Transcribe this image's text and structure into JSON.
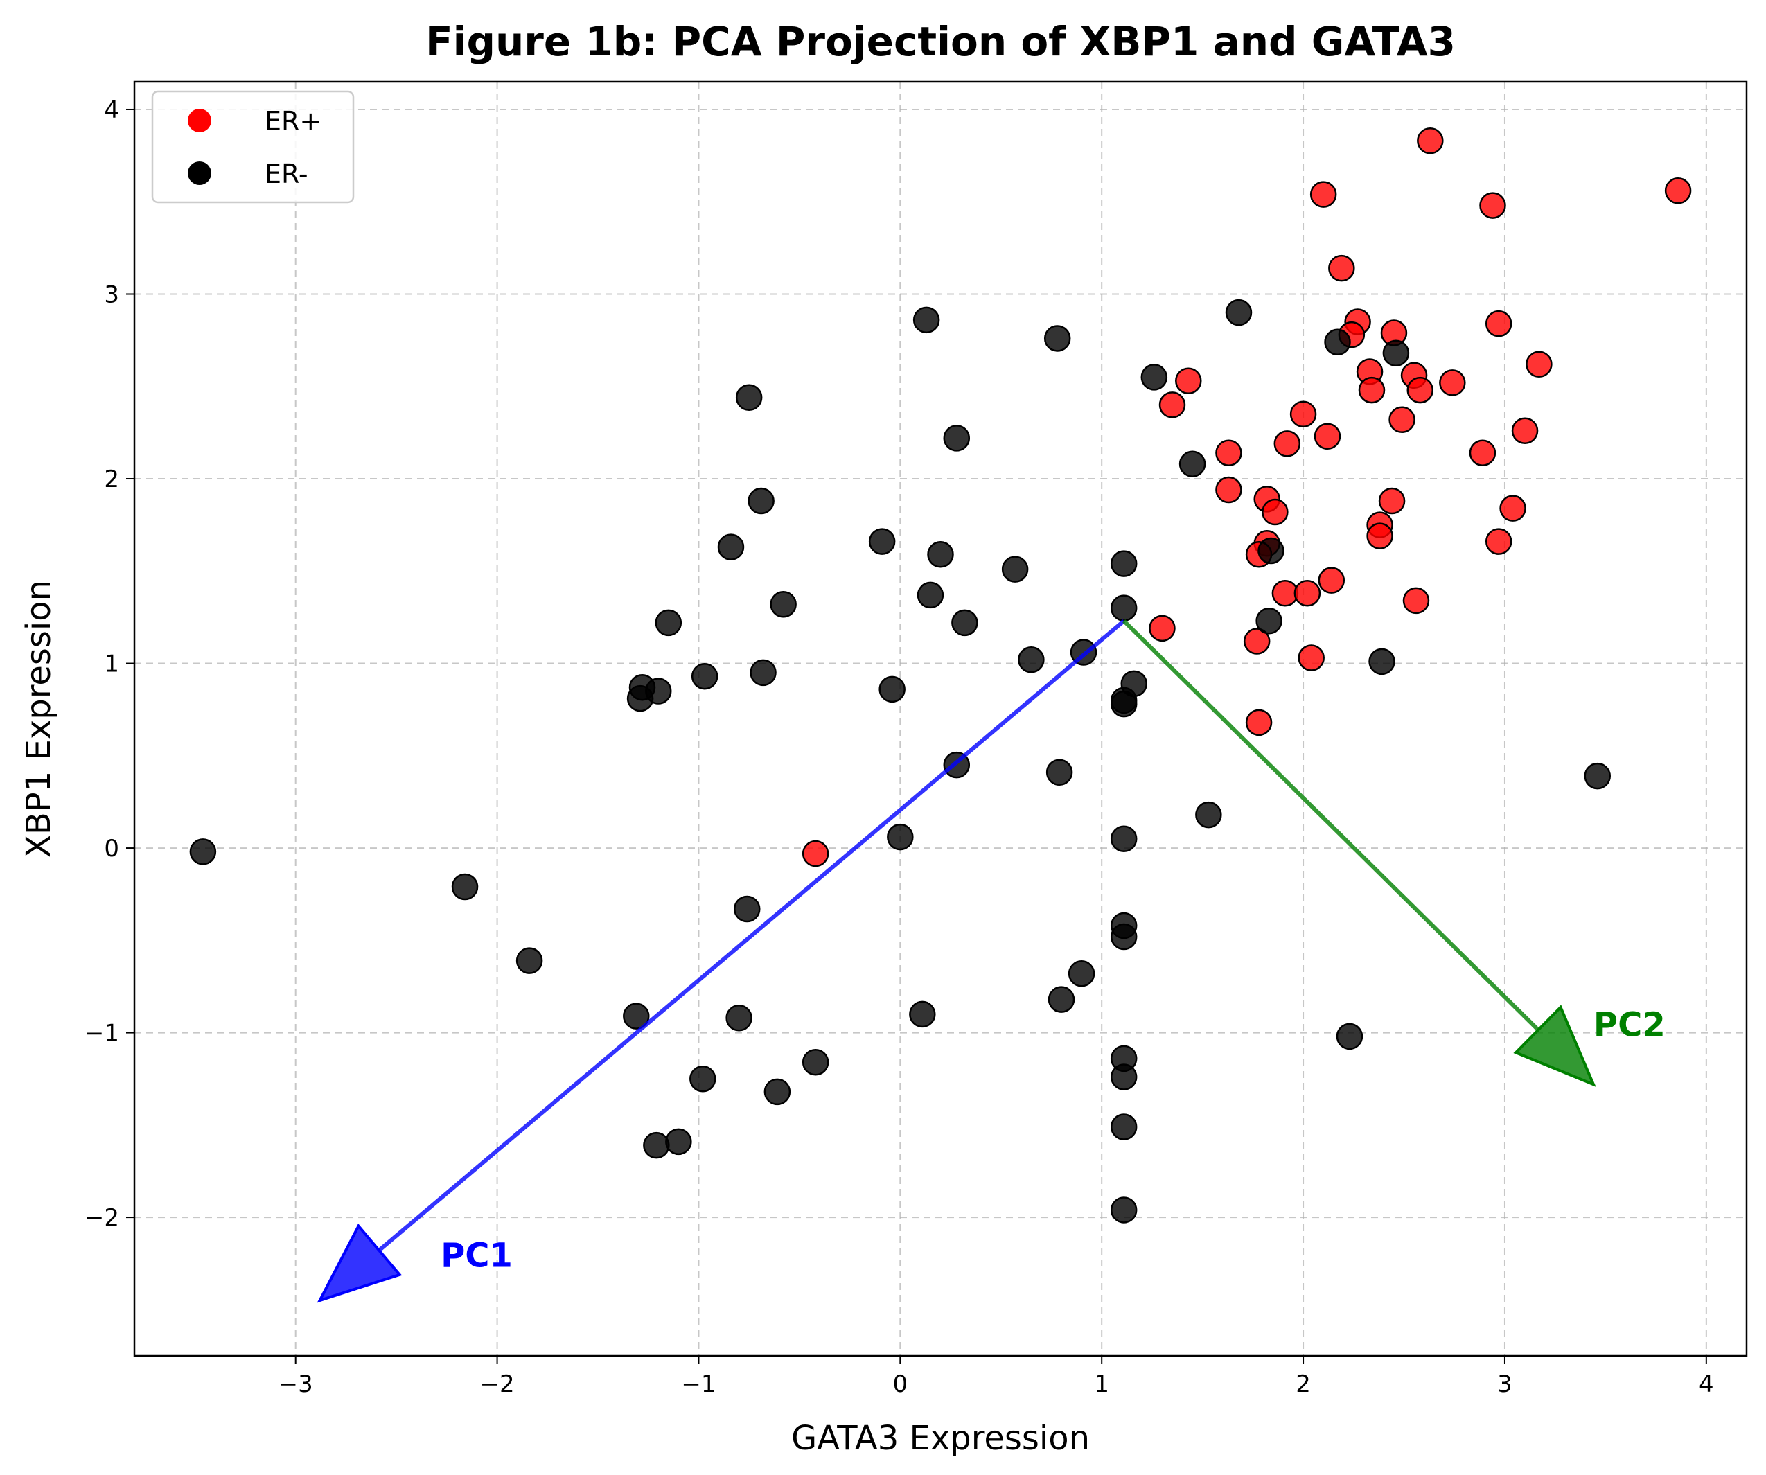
{
  "chart_data": {
    "type": "scatter",
    "title": "Figure 1b: PCA Projection of XBP1 and GATA3",
    "xlabel": "GATA3 Expression",
    "ylabel": "XBP1 Expression",
    "xlim": [
      -3.8,
      4.2
    ],
    "ylim": [
      -2.75,
      4.15
    ],
    "xticks": [
      -3,
      -2,
      -1,
      0,
      1,
      2,
      3,
      4
    ],
    "yticks": [
      -2,
      -1,
      0,
      1,
      2,
      3,
      4
    ],
    "grid": true,
    "legend_placement": "top-left",
    "series": [
      {
        "name": "ER+",
        "color": "#ff0000",
        "x": [
          2.63,
          3.86,
          2.1,
          2.94,
          2.19,
          2.27,
          2.24,
          2.45,
          2.97,
          3.17,
          1.43,
          2.33,
          2.55,
          2.34,
          2.74,
          2.58,
          1.35,
          2.0,
          2.49,
          1.63,
          1.92,
          2.12,
          3.1,
          2.89,
          1.63,
          1.82,
          1.86,
          2.44,
          3.04,
          2.38,
          2.38,
          2.97,
          1.82,
          1.78,
          2.14,
          1.91,
          2.02,
          2.56,
          1.3,
          1.77,
          2.04,
          1.78,
          -0.42
        ],
        "y": [
          3.83,
          3.56,
          3.54,
          3.48,
          3.14,
          2.85,
          2.78,
          2.79,
          2.84,
          2.62,
          2.53,
          2.58,
          2.56,
          2.48,
          2.52,
          2.48,
          2.4,
          2.35,
          2.32,
          2.14,
          2.19,
          2.23,
          2.26,
          2.14,
          1.94,
          1.89,
          1.82,
          1.88,
          1.84,
          1.75,
          1.69,
          1.66,
          1.65,
          1.59,
          1.45,
          1.38,
          1.38,
          1.34,
          1.19,
          1.12,
          1.03,
          0.68,
          -0.03
        ]
      },
      {
        "name": "ER-",
        "color": "#000000",
        "x": [
          -3.46,
          -2.16,
          -1.84,
          -1.31,
          -1.29,
          -1.28,
          -1.2,
          -1.21,
          -1.15,
          -1.1,
          -0.98,
          -0.97,
          -0.84,
          -0.8,
          -0.76,
          -0.75,
          -0.69,
          -0.68,
          -0.61,
          -0.58,
          -0.42,
          -0.09,
          -0.04,
          0.0,
          0.11,
          0.13,
          0.15,
          0.2,
          0.28,
          0.28,
          0.32,
          0.57,
          0.65,
          0.78,
          0.79,
          0.8,
          0.9,
          0.91,
          1.11,
          1.11,
          1.11,
          1.11,
          1.11,
          1.11,
          1.11,
          1.11,
          1.11,
          1.11,
          1.11,
          1.16,
          1.26,
          1.45,
          1.53,
          1.68,
          1.83,
          1.84,
          2.17,
          2.23,
          2.39,
          2.46,
          3.46
        ],
        "y": [
          -0.02,
          -0.21,
          -0.61,
          -0.91,
          0.81,
          0.87,
          0.85,
          -1.61,
          1.22,
          -1.59,
          -1.25,
          0.93,
          1.63,
          -0.92,
          -0.33,
          2.44,
          1.88,
          0.95,
          -1.32,
          1.32,
          -1.16,
          1.66,
          0.86,
          0.06,
          -0.9,
          2.86,
          1.37,
          1.59,
          2.22,
          0.45,
          1.22,
          1.51,
          1.02,
          2.76,
          0.41,
          -0.82,
          -0.68,
          1.06,
          1.54,
          1.3,
          0.8,
          0.78,
          0.05,
          -0.42,
          -0.48,
          -1.14,
          -1.24,
          -1.51,
          -1.96,
          0.89,
          2.55,
          2.08,
          0.18,
          2.9,
          1.23,
          1.61,
          2.74,
          -1.02,
          1.01,
          2.68,
          0.39
        ]
      }
    ],
    "vectors": [
      {
        "name": "PC1",
        "color": "#0000ff",
        "from": [
          1.11,
          1.23
        ],
        "to": [
          -2.88,
          -2.45
        ],
        "label_pos": [
          -2.28,
          -2.2
        ]
      },
      {
        "name": "PC2",
        "color": "#008000",
        "from": [
          1.11,
          1.23
        ],
        "to": [
          3.44,
          -1.28
        ],
        "label_pos": [
          3.44,
          -0.95
        ]
      }
    ]
  }
}
